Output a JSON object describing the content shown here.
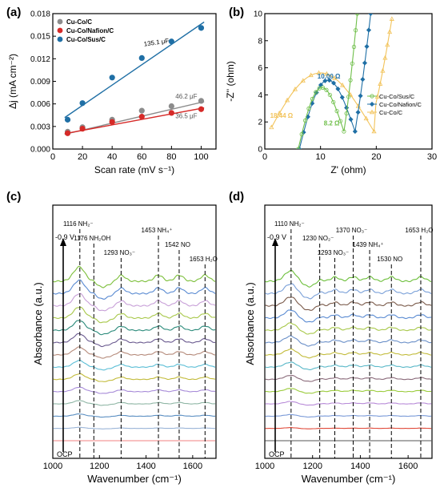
{
  "figure": {
    "panel_labels": [
      "(a)",
      "(b)",
      "(c)",
      "(d)"
    ]
  },
  "chart_data": [
    {
      "panel": "(a)",
      "type": "scatter",
      "xlabel": "Scan rate (mV s⁻¹)",
      "ylabel": "Δj (mA cm⁻²)",
      "xlim": [
        0,
        110
      ],
      "ylim": [
        0,
        0.018
      ],
      "xticks": [
        "0",
        "20",
        "40",
        "60",
        "80",
        "100"
      ],
      "yticks": [
        "0.000",
        "0.003",
        "0.006",
        "0.009",
        "0.012",
        "0.015",
        "0.018"
      ],
      "legend": "top-left",
      "series": [
        {
          "name": "Cu-Co/C",
          "color": "#8c8c8c",
          "x": [
            10,
            20,
            40,
            60,
            80,
            100
          ],
          "y": [
            0.0023,
            0.0029,
            0.0039,
            0.0051,
            0.0057,
            0.0064
          ],
          "fit_label": "46.2 μF",
          "fit": [
            0.0016,
            4.6e-05
          ]
        },
        {
          "name": "Cu-Co/Nafion/C",
          "color": "#d62a28",
          "x": [
            10,
            20,
            40,
            60,
            80,
            100
          ],
          "y": [
            0.0021,
            0.0027,
            0.0036,
            0.0043,
            0.0048,
            0.0053
          ],
          "fit_label": "36.5 μF",
          "fit": [
            0.00175,
            3.65e-05
          ]
        },
        {
          "name": "Cu-Co/Sus/C",
          "color": "#1f6fa5",
          "x": [
            10,
            20,
            40,
            60,
            80,
            100
          ],
          "y": [
            0.0039,
            0.0061,
            0.0095,
            0.0121,
            0.0143,
            0.0161
          ],
          "fit_label": "135.1 μF",
          "fit": [
            0.0031,
            0.0001351
          ]
        }
      ]
    },
    {
      "panel": "(b)",
      "type": "line",
      "xlabel": "Z' (ohm)",
      "ylabel": "-Z'' (ohm)",
      "xlim": [
        0,
        30
      ],
      "ylim": [
        0,
        10
      ],
      "xticks": [
        "0",
        "10",
        "20",
        "30"
      ],
      "yticks": [
        "0",
        "2",
        "4",
        "6",
        "8",
        "10"
      ],
      "legend": "center-right",
      "series": [
        {
          "name": "Cu-Co/Sus/C",
          "color": "#6fbf4a",
          "marker": "circle",
          "arc": {
            "start": 6.0,
            "end": 14.2,
            "peak": 4.2
          },
          "tail": {
            "from": [
              14.2,
              1.4
            ],
            "to": [
              16.6,
              10.0
            ]
          },
          "label": "8.2 Ω",
          "label_color": "#6fbf4a"
        },
        {
          "name": "Cu-Co/Nafion/C",
          "color": "#1f6fa5",
          "marker": "diamond",
          "arc": {
            "start": 6.2,
            "end": 16.2,
            "peak": 4.8
          },
          "tail": {
            "from": [
              16.2,
              1.5
            ],
            "to": [
              19.0,
              10.0
            ]
          },
          "label": "10.00 Ω",
          "label_color": "#1f6fa5"
        },
        {
          "name": "Cu-Co/C",
          "color": "#f2c35a",
          "marker": "triangle",
          "arc": {
            "start": 1.2,
            "end": 19.6,
            "peak": 4.5
          },
          "tail": {
            "from": [
              19.6,
              2.9
            ],
            "to": [
              22.8,
              9.6
            ]
          },
          "label": "18.44 Ω",
          "label_color": "#f2c35a"
        }
      ]
    },
    {
      "panel": "(c)",
      "type": "line",
      "xlabel": "Wavenumber (cm⁻¹)",
      "ylabel": "Absorbance (a.u.)",
      "xlim": [
        1000,
        1700
      ],
      "xticks": [
        "1000",
        "1200",
        "1400",
        "1600"
      ],
      "arrow_top": "-0.9 V",
      "arrow_bottom": "OCP",
      "peaks": [
        {
          "wavenumber": 1116,
          "label": "1116 NH₂⁻"
        },
        {
          "wavenumber": 1176,
          "label": "1176 NH₂OH"
        },
        {
          "wavenumber": 1293,
          "label": "1293 NO₃⁻"
        },
        {
          "wavenumber": 1453,
          "label": "1453 NH₄⁺"
        },
        {
          "wavenumber": 1542,
          "label": "1542 NO"
        },
        {
          "wavenumber": 1653,
          "label": "1653 H₂O"
        }
      ],
      "trace_colors": [
        "#f08080",
        "#9bb5d8",
        "#5b8fc2",
        "#8fb6a5",
        "#a78bd8",
        "#c2bb3a",
        "#5bbed6",
        "#b58a7a",
        "#6a5a8f",
        "#2a8a7a",
        "#a8c84a",
        "#c8a0d8",
        "#5a8bd2",
        "#7cbf3a"
      ]
    },
    {
      "panel": "(d)",
      "type": "line",
      "xlabel": "Wavenumber (cm⁻¹)",
      "ylabel": "Absorbance (a.u.)",
      "xlim": [
        1000,
        1700
      ],
      "xticks": [
        "1000",
        "1200",
        "1400",
        "1600"
      ],
      "arrow_top": "-0.9 V",
      "arrow_bottom": "OCP",
      "peaks": [
        {
          "wavenumber": 1110,
          "label": "1110 NH₂⁻"
        },
        {
          "wavenumber": 1230,
          "label": "1230 NO₂⁻"
        },
        {
          "wavenumber": 1293,
          "label": "1293 NO₃⁻"
        },
        {
          "wavenumber": 1370,
          "label": "1370 NO₃⁻"
        },
        {
          "wavenumber": 1439,
          "label": "1439 NH₄⁺"
        },
        {
          "wavenumber": 1530,
          "label": "1530 NO"
        },
        {
          "wavenumber": 1653,
          "label": "1653 H₂O"
        }
      ],
      "trace_colors": [
        "#555555",
        "#e04a3a",
        "#7a9ad8",
        "#b88bd8",
        "#9acb3a",
        "#8a6a7a",
        "#5ab8c8",
        "#c2bb3a",
        "#6a8fc8",
        "#a8c84a",
        "#5a8bd2",
        "#7a5a4a",
        "#7aa0d8",
        "#6cbf3a"
      ]
    }
  ]
}
